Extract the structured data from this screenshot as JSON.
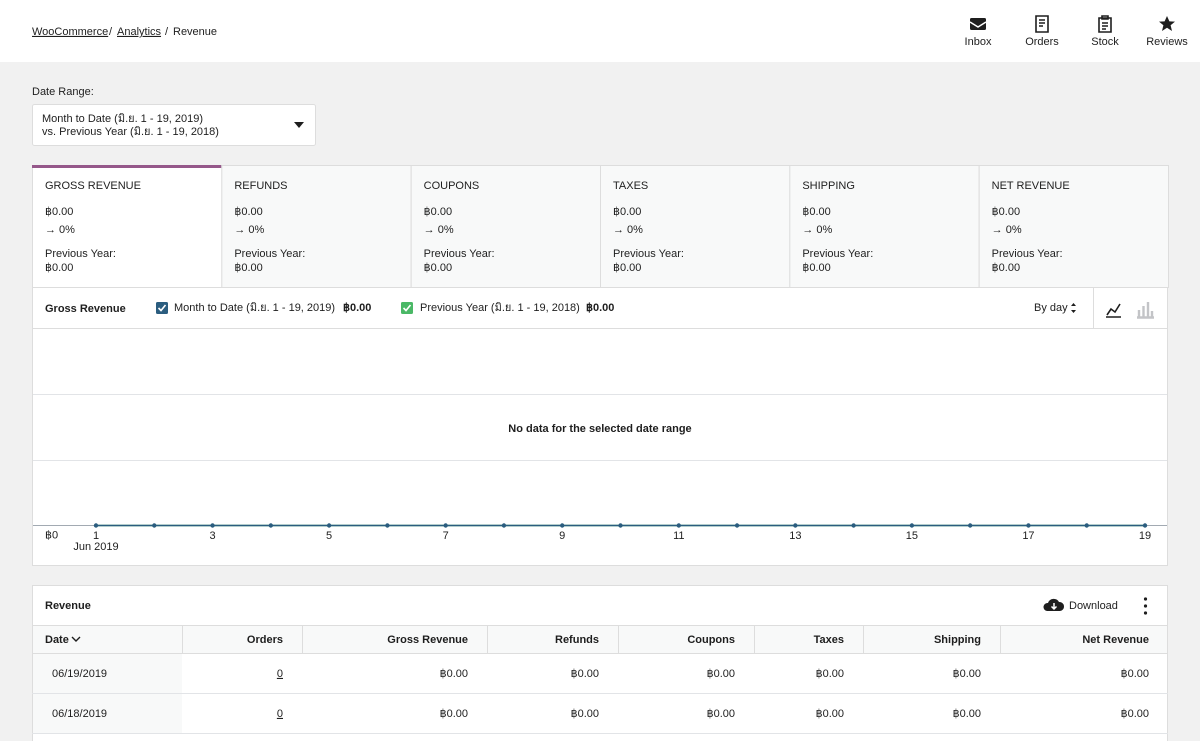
{
  "breadcrumb": {
    "items": [
      "WooCommerce",
      "Analytics",
      "Revenue"
    ],
    "separator": "/"
  },
  "header_actions": [
    "Inbox",
    "Orders",
    "Stock",
    "Reviews"
  ],
  "date_range": {
    "label": "Date Range:",
    "primary": "Month to Date (มิ.ย. 1 - 19, 2019)",
    "secondary": "vs. Previous Year (มิ.ย. 1 - 19, 2018)"
  },
  "summary": [
    {
      "title": "GROSS REVENUE",
      "value": "฿0.00",
      "delta": "→ 0%",
      "previous_label": "Previous Year:",
      "previous": "฿0.00"
    },
    {
      "title": "REFUNDS",
      "value": "฿0.00",
      "delta": "→ 0%",
      "previous_label": "Previous Year:",
      "previous": "฿0.00"
    },
    {
      "title": "COUPONS",
      "value": "฿0.00",
      "delta": "→ 0%",
      "previous_label": "Previous Year:",
      "previous": "฿0.00"
    },
    {
      "title": "TAXES",
      "value": "฿0.00",
      "delta": "→ 0%",
      "previous_label": "Previous Year:",
      "previous": "฿0.00"
    },
    {
      "title": "SHIPPING",
      "value": "฿0.00",
      "delta": "→ 0%",
      "previous_label": "Previous Year:",
      "previous": "฿0.00"
    },
    {
      "title": "NET REVENUE",
      "value": "฿0.00",
      "delta": "→ 0%",
      "previous_label": "Previous Year:",
      "previous": "฿0.00"
    }
  ],
  "chart_data": {
    "type": "line",
    "title": "Gross Revenue",
    "interval": "By day",
    "message": "No data for the selected date range",
    "x": [
      1,
      2,
      3,
      4,
      5,
      6,
      7,
      8,
      9,
      10,
      11,
      12,
      13,
      14,
      15,
      16,
      17,
      18,
      19
    ],
    "xticks": [
      1,
      3,
      5,
      7,
      9,
      11,
      13,
      15,
      17,
      19
    ],
    "x_sublabel": "Jun 2019",
    "yticks": [
      {
        "value": 0,
        "label": "฿0"
      }
    ],
    "series": [
      {
        "name": "Month to Date (มิ.ย. 1 - 19, 2019)",
        "color": "#2b5d7f",
        "total": "฿0.00",
        "values": [
          0,
          0,
          0,
          0,
          0,
          0,
          0,
          0,
          0,
          0,
          0,
          0,
          0,
          0,
          0,
          0,
          0,
          0,
          0
        ]
      },
      {
        "name": "Previous Year (มิ.ย. 1 - 19, 2018)",
        "color": "#4ab866",
        "total": "฿0.00",
        "values": [
          0,
          0,
          0,
          0,
          0,
          0,
          0,
          0,
          0,
          0,
          0,
          0,
          0,
          0,
          0,
          0,
          0,
          0,
          0
        ]
      }
    ]
  },
  "table": {
    "title": "Revenue",
    "download": "Download",
    "columns": [
      "Date",
      "Orders",
      "Gross Revenue",
      "Refunds",
      "Coupons",
      "Taxes",
      "Shipping",
      "Net Revenue"
    ],
    "rows": [
      [
        "06/19/2019",
        "0",
        "฿0.00",
        "฿0.00",
        "฿0.00",
        "฿0.00",
        "฿0.00",
        "฿0.00"
      ],
      [
        "06/18/2019",
        "0",
        "฿0.00",
        "฿0.00",
        "฿0.00",
        "฿0.00",
        "฿0.00",
        "฿0.00"
      ]
    ]
  }
}
